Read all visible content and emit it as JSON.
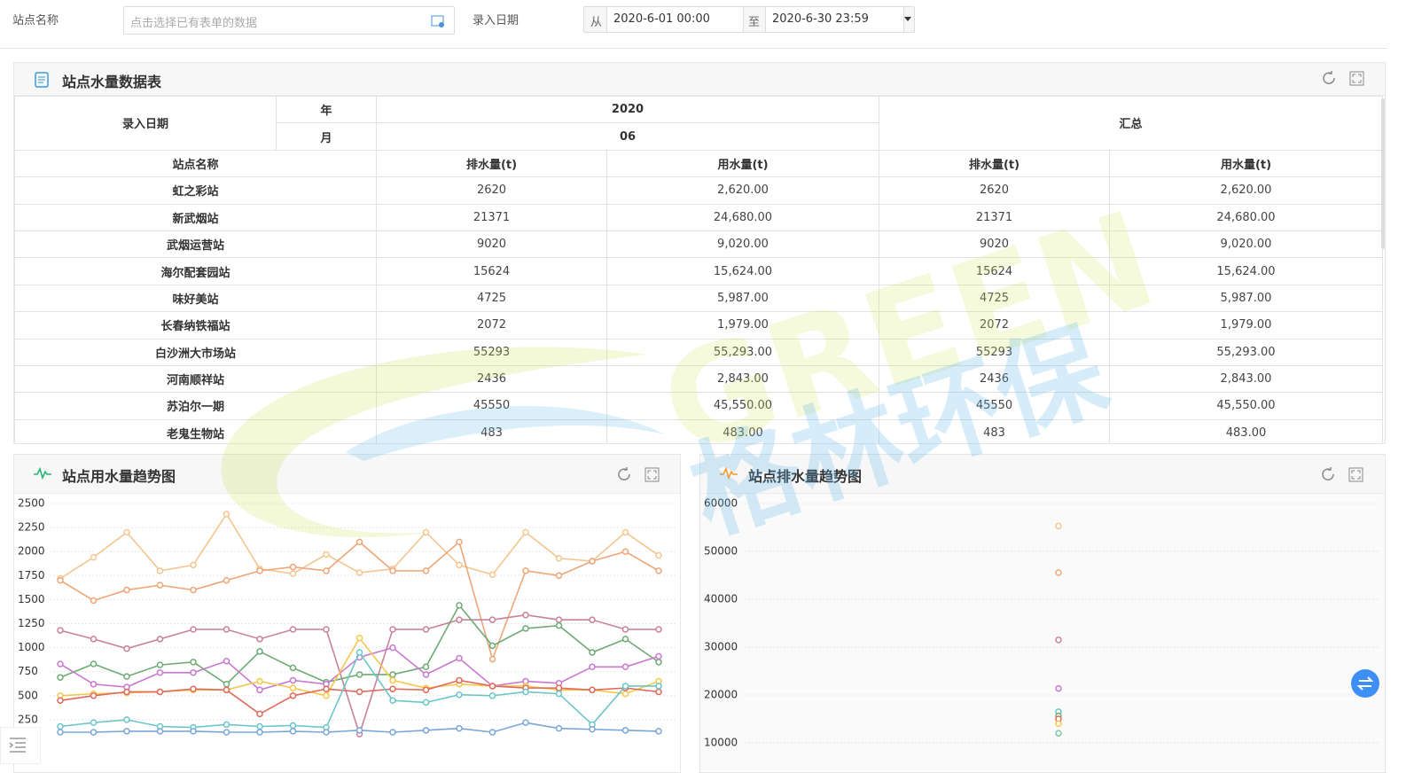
{
  "filters": {
    "station_label": "站点名称",
    "station_placeholder": "点击选择已有表单的数据",
    "date_label": "录入日期",
    "from": "从",
    "from_value": "2020-6-01 00:00",
    "to": "至",
    "to_value": "2020-6-30 23:59"
  },
  "table_panel": {
    "title": "站点水量数据表"
  },
  "table": {
    "header": {
      "date": "录入日期",
      "year_label": "年",
      "year": "2020",
      "total": "汇总",
      "month_label": "月",
      "month": "06",
      "station": "站点名称",
      "cols": [
        "排水量(t)",
        "用水量(t)",
        "排水量(t)",
        "用水量(t)"
      ]
    },
    "rows": [
      [
        "虹之彩站",
        "2620",
        "2,620.00",
        "2620",
        "2,620.00"
      ],
      [
        "新武烟站",
        "21371",
        "24,680.00",
        "21371",
        "24,680.00"
      ],
      [
        "武烟运营站",
        "9020",
        "9,020.00",
        "9020",
        "9,020.00"
      ],
      [
        "海尔配套园站",
        "15624",
        "15,624.00",
        "15624",
        "15,624.00"
      ],
      [
        "味好美站",
        "4725",
        "5,987.00",
        "4725",
        "5,987.00"
      ],
      [
        "长春纳铁福站",
        "2072",
        "1,979.00",
        "2072",
        "1,979.00"
      ],
      [
        "白沙洲大市场站",
        "55293",
        "55,293.00",
        "55293",
        "55,293.00"
      ],
      [
        "河南顺祥站",
        "2436",
        "2,843.00",
        "2436",
        "2,843.00"
      ],
      [
        "苏泊尔一期",
        "45550",
        "45,550.00",
        "45550",
        "45,550.00"
      ],
      [
        "老鬼生物站",
        "483",
        "483.00",
        "483",
        "483.00"
      ]
    ]
  },
  "watermark": {
    "latin": "GREEN",
    "chinese": "格林环保"
  },
  "chart_data": [
    {
      "type": "line",
      "title": "站点用水量趋势图",
      "ylim": [
        0,
        2500
      ],
      "yticks": [
        250,
        500,
        750,
        1000,
        1250,
        1500,
        1750,
        2000,
        2250,
        2500
      ],
      "grid": true,
      "series": [
        {
          "color": "#f3c58f",
          "values": [
            1720,
            1940,
            2200,
            1800,
            1860,
            2390,
            1820,
            1770,
            1970,
            1780,
            1820,
            2200,
            1860,
            1760,
            2200,
            1930,
            1900,
            2200,
            1960
          ]
        },
        {
          "color": "#eea578",
          "values": [
            1700,
            1490,
            1600,
            1650,
            1600,
            1700,
            1800,
            1840,
            1800,
            2100,
            1800,
            1800,
            2100,
            880,
            1800,
            1750,
            1900,
            2000,
            1800
          ]
        },
        {
          "color": "#c8809c",
          "values": [
            1180,
            1090,
            990,
            1090,
            1190,
            1190,
            1090,
            1190,
            1190,
            100,
            1190,
            1190,
            1290,
            1290,
            1340,
            1290,
            1290,
            1190,
            1190
          ]
        },
        {
          "color": "#6eab74",
          "values": [
            690,
            830,
            700,
            820,
            850,
            620,
            960,
            790,
            640,
            720,
            720,
            800,
            1440,
            1020,
            1200,
            1230,
            950,
            1090,
            850
          ]
        },
        {
          "color": "#c978d0",
          "values": [
            830,
            620,
            590,
            740,
            740,
            860,
            560,
            660,
            620,
            900,
            1000,
            720,
            890,
            600,
            650,
            630,
            800,
            800,
            910
          ]
        },
        {
          "color": "#f5c84c",
          "values": [
            500,
            520,
            530,
            540,
            560,
            560,
            650,
            580,
            500,
            1100,
            660,
            580,
            620,
            600,
            600,
            560,
            560,
            520,
            650
          ]
        },
        {
          "color": "#e06a5c",
          "values": [
            450,
            500,
            540,
            540,
            570,
            560,
            310,
            500,
            570,
            540,
            570,
            560,
            660,
            600,
            580,
            580,
            560,
            580,
            540
          ]
        },
        {
          "color": "#6bc6c8",
          "values": [
            180,
            220,
            250,
            180,
            170,
            200,
            180,
            190,
            170,
            950,
            450,
            430,
            510,
            500,
            540,
            520,
            200,
            600,
            600
          ]
        },
        {
          "color": "#7aa5d8",
          "values": [
            120,
            120,
            130,
            130,
            130,
            120,
            120,
            130,
            120,
            140,
            120,
            140,
            160,
            120,
            220,
            160,
            150,
            140,
            130
          ]
        }
      ]
    },
    {
      "type": "scatter",
      "title": "站点排水量趋势图",
      "ylim": [
        0,
        60000
      ],
      "yticks": [
        10000,
        20000,
        30000,
        40000,
        50000,
        60000
      ],
      "grid": true,
      "series": [
        {
          "color": "#f3c58f",
          "values": [
            55293
          ]
        },
        {
          "color": "#eea578",
          "values": [
            45550
          ]
        },
        {
          "color": "#c8809c",
          "values": [
            31500
          ]
        },
        {
          "color": "#c978d0",
          "values": [
            21371
          ]
        },
        {
          "color": "#6bc6c8",
          "values": [
            16500
          ]
        },
        {
          "color": "#6eab74",
          "values": [
            15624
          ]
        },
        {
          "color": "#e06a5c",
          "values": [
            15000
          ]
        },
        {
          "color": "#f5c84c",
          "values": [
            14000
          ]
        },
        {
          "color": "#7ec8a8",
          "values": [
            12000
          ]
        }
      ]
    }
  ]
}
